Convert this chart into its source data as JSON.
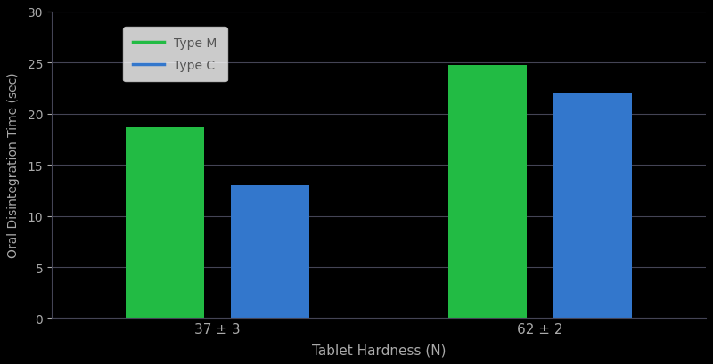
{
  "categories": [
    "37 ± 3",
    "62 ± 2"
  ],
  "type_m_values": [
    18.7,
    24.8
  ],
  "type_c_values": [
    13.0,
    22.0
  ],
  "bar_color_m": "#22bb44",
  "bar_color_c": "#3377cc",
  "xlabel": "Tablet Hardness (N)",
  "ylabel": "Oral Disintegration Time (sec)",
  "ylim": [
    0,
    30
  ],
  "yticks": [
    0,
    5,
    10,
    15,
    20,
    25,
    30
  ],
  "legend_labels": [
    "Type M",
    "Type C"
  ],
  "background_color": "#000000",
  "plot_bg_color": "#000000",
  "grid_color": "#444455",
  "text_color": "#aaaaaa",
  "bar_width": 0.18,
  "group_centers": [
    0.38,
    1.12
  ]
}
